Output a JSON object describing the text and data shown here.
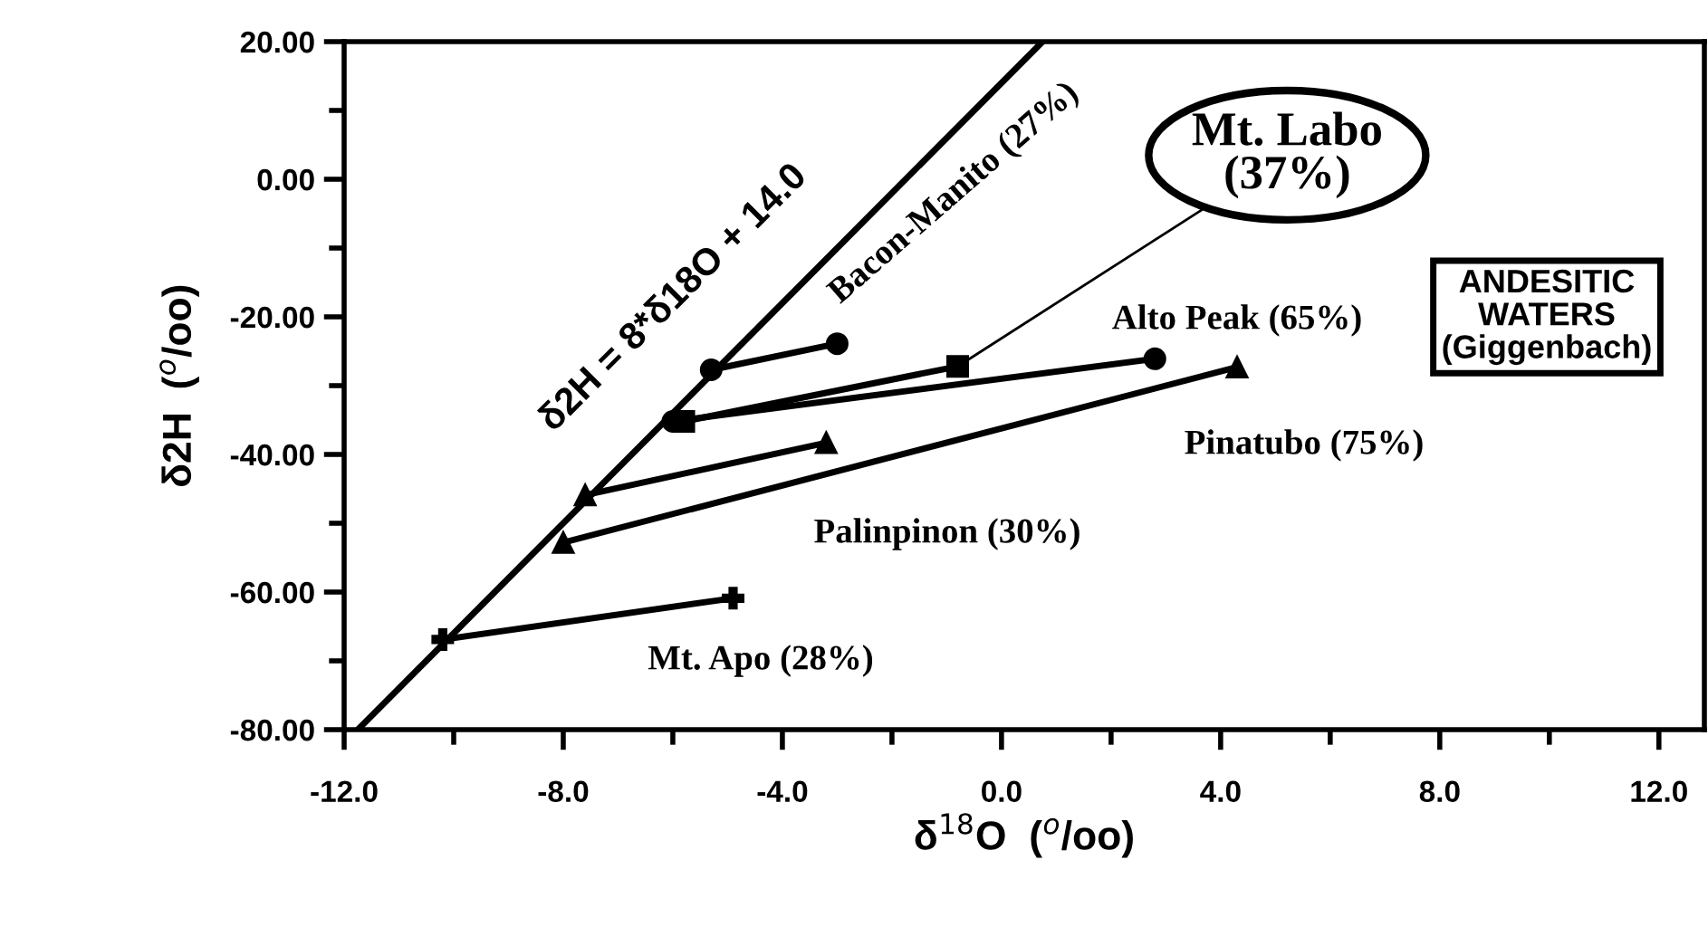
{
  "chart_data": {
    "type": "line",
    "xlabel": "δ$^{18}$O  ($^{o}$/oo)",
    "ylabel": "δ2H  ($^{o}$/oo)",
    "xlim": [
      -12,
      12.83
    ],
    "ylim": [
      -80,
      20
    ],
    "xticks": [
      {
        "value": -12,
        "label": "-12.0"
      },
      {
        "value": -8,
        "label": "-8.0"
      },
      {
        "value": -4,
        "label": "-4.0"
      },
      {
        "value": 0,
        "label": "0.0"
      },
      {
        "value": 4,
        "label": "4.0"
      },
      {
        "value": 8,
        "label": "8.0"
      },
      {
        "value": 12,
        "label": "12.0"
      }
    ],
    "yticks": [
      {
        "value": -80,
        "label": "-80.00"
      },
      {
        "value": -60,
        "label": "-60.00"
      },
      {
        "value": -40,
        "label": "-40.00"
      },
      {
        "value": -20,
        "label": "-20.00"
      },
      {
        "value": 0,
        "label": "0.00"
      },
      {
        "value": 20,
        "label": "20.00"
      }
    ],
    "grid": false,
    "series": [
      {
        "color": "#000000",
        "marker": "none",
        "x": [
          -11.75,
          0.75
        ],
        "values": [
          -80,
          20
        ]
      },
      {
        "color": "#000000",
        "marker": "circle",
        "x": [
          -5.3,
          -3.0
        ],
        "values": [
          -27.7,
          -23.9
        ]
      },
      {
        "color": "#000000",
        "marker": "square",
        "x": [
          -5.8,
          -0.8
        ],
        "values": [
          -35.2,
          -27.2
        ]
      },
      {
        "color": "#000000",
        "marker": "circle",
        "x": [
          -6.0,
          2.8
        ],
        "values": [
          -35.2,
          -26.1
        ]
      },
      {
        "color": "#000000",
        "marker": "triangle",
        "x": [
          -8.0,
          4.3
        ],
        "values": [
          -52.8,
          -27.3
        ]
      },
      {
        "color": "#000000",
        "marker": "triangle",
        "x": [
          -7.6,
          -3.2
        ],
        "values": [
          -45.9,
          -38.3
        ]
      },
      {
        "color": "#000000",
        "marker": "cross",
        "x": [
          -10.2,
          -4.9
        ],
        "values": [
          -66.9,
          -60.9
        ]
      }
    ],
    "annotations": [
      "δ2H = 8*δ18O + 14.0",
      "Bacon-Manito (27%)",
      {
        "text": "Mt. Labo\n(37%)",
        "x": -0.8,
        "y": -27.2
      },
      "Alto Peak (65%)",
      "Pinatubo (75%)",
      "Palinpinon (30%)",
      "Mt. Apo (28%)",
      "ANDESITIC\nWATERS\n(Giggenbach)"
    ]
  }
}
